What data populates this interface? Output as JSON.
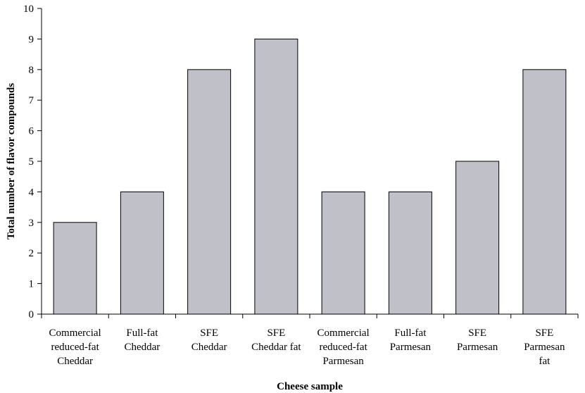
{
  "chart_data": {
    "type": "bar",
    "title": "",
    "xlabel": "Cheese sample",
    "ylabel": "Total number of flavor compounds",
    "ylim": [
      0,
      10
    ],
    "yticks": [
      "0",
      "1",
      "2",
      "3",
      "4",
      "5",
      "6",
      "7",
      "8",
      "9",
      "10"
    ],
    "categories": [
      [
        "Commercial",
        "reduced-fat",
        "Cheddar"
      ],
      [
        "Full-fat",
        "Cheddar"
      ],
      [
        "SFE",
        "Cheddar"
      ],
      [
        "SFE",
        "Cheddar fat"
      ],
      [
        "Commercial",
        "reduced-fat",
        "Parmesan"
      ],
      [
        "Full-fat",
        "Parmesan"
      ],
      [
        "SFE",
        "Parmesan"
      ],
      [
        "SFE",
        "Parmesan",
        "fat"
      ]
    ],
    "values": [
      3,
      4,
      8,
      9,
      4,
      4,
      5,
      8
    ],
    "grid": false,
    "legend": "none",
    "bar_color": "#c0c0c8"
  }
}
